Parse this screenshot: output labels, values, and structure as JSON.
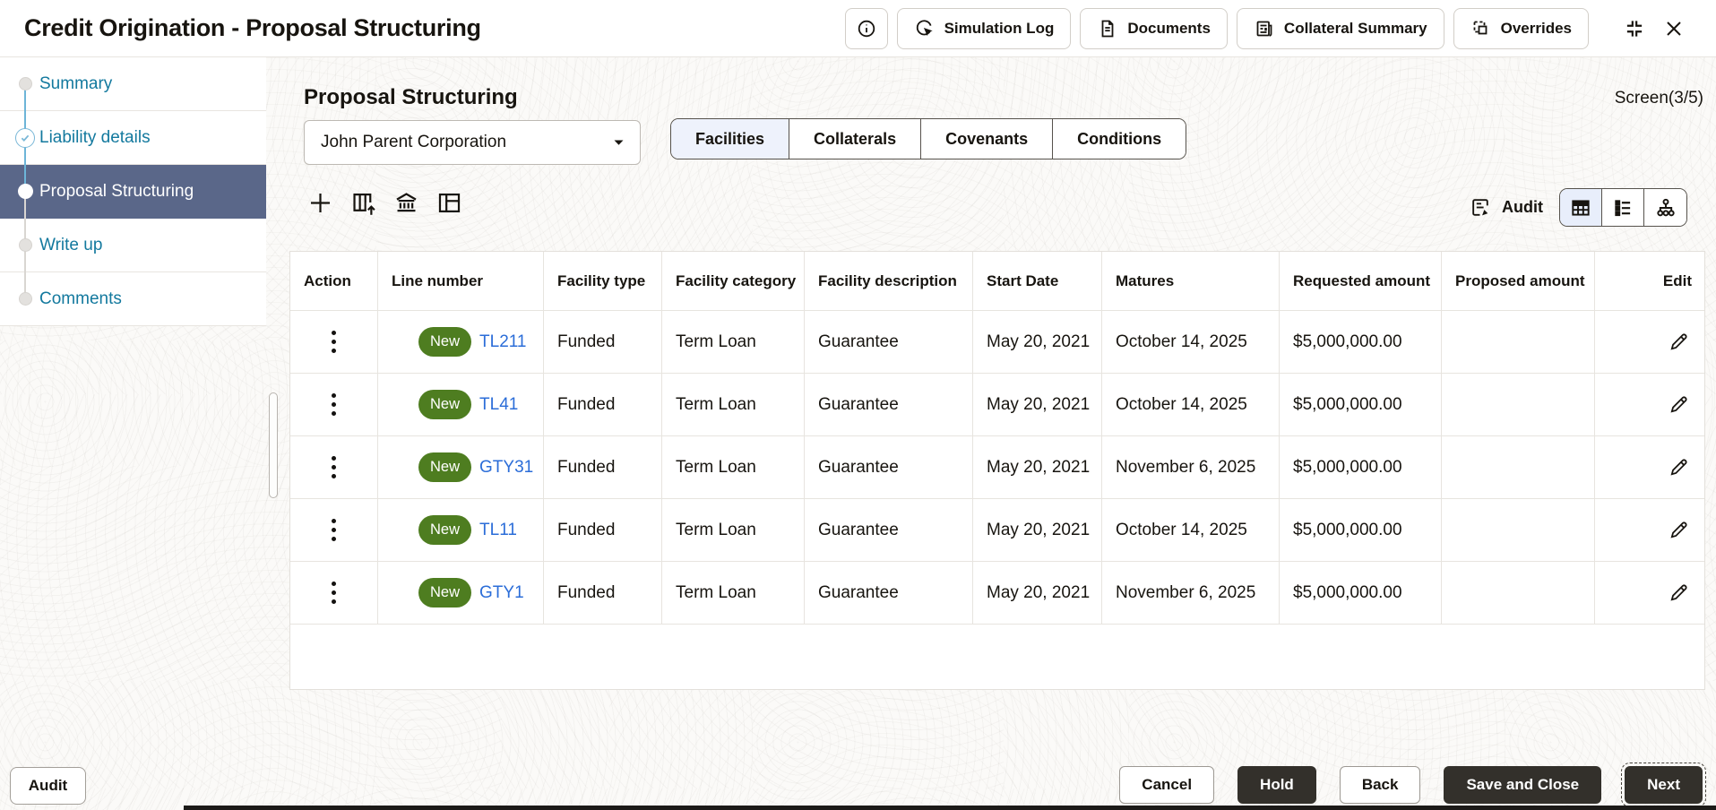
{
  "window": {
    "title": "Credit Origination - Proposal Structuring"
  },
  "header_actions": {
    "simulation_log": "Simulation Log",
    "documents": "Documents",
    "collateral_summary": "Collateral Summary",
    "overrides": "Overrides"
  },
  "sidebar": {
    "items": [
      {
        "label": "Summary",
        "state": "default"
      },
      {
        "label": "Liability details",
        "state": "completed"
      },
      {
        "label": "Proposal Structuring",
        "state": "active"
      },
      {
        "label": "Write up",
        "state": "default"
      },
      {
        "label": "Comments",
        "state": "default"
      }
    ]
  },
  "main": {
    "title": "Proposal Structuring",
    "screen_indicator": "Screen(3/5)",
    "party_selector": {
      "value": "John Parent Corporation"
    },
    "tabs": [
      {
        "label": "Facilities",
        "active": true
      },
      {
        "label": "Collaterals",
        "active": false
      },
      {
        "label": "Covenants",
        "active": false
      },
      {
        "label": "Conditions",
        "active": false
      }
    ],
    "audit_label": "Audit",
    "table": {
      "columns": [
        "Action",
        "Line number",
        "Facility type",
        "Facility category",
        "Facility description",
        "Start Date",
        "Matures",
        "Requested amount",
        "Proposed amount",
        "Edit"
      ],
      "rows": [
        {
          "badge": "New",
          "line_number": "TL211",
          "facility_type": "Funded",
          "facility_category": "Term Loan",
          "facility_description": "Guarantee",
          "start_date": "May 20, 2021",
          "matures": "October 14, 2025",
          "requested_amount": "$5,000,000.00",
          "proposed_amount": ""
        },
        {
          "badge": "New",
          "line_number": "TL41",
          "facility_type": "Funded",
          "facility_category": "Term Loan",
          "facility_description": "Guarantee",
          "start_date": "May 20, 2021",
          "matures": "October 14, 2025",
          "requested_amount": "$5,000,000.00",
          "proposed_amount": ""
        },
        {
          "badge": "New",
          "line_number": "GTY31",
          "facility_type": "Funded",
          "facility_category": "Term Loan",
          "facility_description": "Guarantee",
          "start_date": "May 20, 2021",
          "matures": "November 6, 2025",
          "requested_amount": "$5,000,000.00",
          "proposed_amount": ""
        },
        {
          "badge": "New",
          "line_number": "TL11",
          "facility_type": "Funded",
          "facility_category": "Term Loan",
          "facility_description": "Guarantee",
          "start_date": "May 20, 2021",
          "matures": "October 14, 2025",
          "requested_amount": "$5,000,000.00",
          "proposed_amount": ""
        },
        {
          "badge": "New",
          "line_number": "GTY1",
          "facility_type": "Funded",
          "facility_category": "Term Loan",
          "facility_description": "Guarantee",
          "start_date": "May 20, 2021",
          "matures": "November 6, 2025",
          "requested_amount": "$5,000,000.00",
          "proposed_amount": ""
        }
      ]
    }
  },
  "footer": {
    "audit": "Audit",
    "cancel": "Cancel",
    "hold": "Hold",
    "back": "Back",
    "save_and_close": "Save and Close",
    "next": "Next"
  },
  "icons": [
    "info-icon",
    "simulation-log-icon",
    "documents-icon",
    "collateral-summary-icon",
    "overrides-icon",
    "exit-fullscreen-icon",
    "close-icon",
    "add-icon",
    "import-facility-icon",
    "bank-icon",
    "layout-icon",
    "audit-icon",
    "grid-view-icon",
    "list-view-icon",
    "tree-view-icon",
    "kebab-icon",
    "edit-pencil-icon",
    "dropdown-caret-icon",
    "check-icon"
  ],
  "colors": {
    "active_step_bg": "#5a6789",
    "sidebar_text": "#13799e",
    "link": "#2b6dd8",
    "badge_new": "#4e7d20",
    "dark_button": "#33302b",
    "tab_active_bg": "#eef2fc",
    "connector_done": "#6db5d8"
  }
}
